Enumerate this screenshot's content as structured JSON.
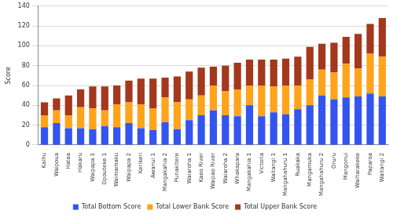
{
  "chart_data": {
    "type": "bar",
    "stacked": true,
    "grid": true,
    "legend": "bottom",
    "y_label": "Score",
    "categories": [
      "Kaihu",
      "Waipoua",
      "Hatea",
      "Hakaru",
      "Waipapa 1",
      "Opouteke 1",
      "Waimamaku",
      "Waipapa 2",
      "Kerikeri",
      "Awanui 1",
      "Mangakahia 2",
      "Punakitere",
      "Waiaroha 1",
      "Kaeo River",
      "Waipao River",
      "Waiaroha 2",
      "Whakapara",
      "Mangakahia 1",
      "Victoria",
      "Waitangi 1",
      "Mangahahuru 1",
      "Ruakaka",
      "Mangamuka",
      "Mangahahuru 2",
      "Oruru",
      "Mangonui",
      "Waiharakeke",
      "Paparoa",
      "Waitangi 2"
    ],
    "series": [
      {
        "name": "Total Bottom Score",
        "color": "#3355ee",
        "values": [
          18,
          22,
          17,
          17,
          16,
          19,
          18,
          22,
          17,
          15,
          23,
          16,
          25,
          30,
          35,
          30,
          29,
          40,
          29,
          33,
          31,
          36,
          40,
          50,
          46,
          48,
          49,
          52,
          49
        ]
      },
      {
        "name": "Total Lower Bank Score",
        "color": "#ffa31a",
        "values": [
          12,
          13,
          13,
          21,
          21,
          16,
          23,
          21,
          24,
          22,
          25,
          27,
          21,
          20,
          25,
          24,
          27,
          20,
          31,
          26,
          29,
          24,
          26,
          26,
          27,
          34,
          28,
          40,
          40
        ]
      },
      {
        "name": "Total Upper Bank Score",
        "color": "#a3381c",
        "values": [
          13,
          12,
          20,
          18,
          22,
          24,
          19,
          22,
          26,
          30,
          20,
          26,
          28,
          28,
          19,
          26,
          27,
          26,
          26,
          27,
          27,
          29,
          33,
          26,
          30,
          27,
          35,
          30,
          39
        ]
      }
    ],
    "ylim": [
      0,
      140
    ],
    "yticks": [
      0,
      20,
      40,
      60,
      80,
      100,
      120,
      140
    ]
  }
}
